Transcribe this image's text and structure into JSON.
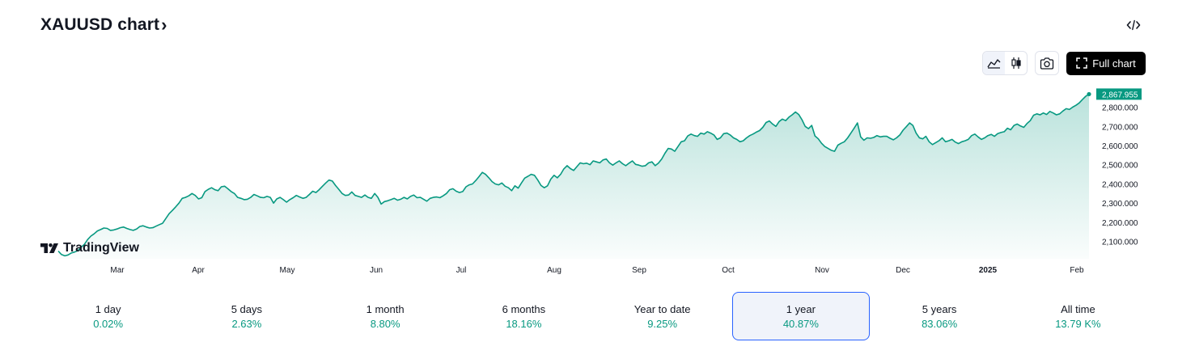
{
  "header": {
    "title": "XAUUSD chart"
  },
  "toolbar": {
    "full_chart_label": "Full chart"
  },
  "brand": {
    "name": "TradingView"
  },
  "colors": {
    "line": "#089981",
    "accent": "#2962ff",
    "price_badge": "#089981"
  },
  "icons": {
    "title_chevron": "chevron-right-icon",
    "embed": "code-icon",
    "area": "area-chart-icon",
    "candles": "candles-icon",
    "snapshot": "camera-icon",
    "fullscreen": "fullscreen-icon",
    "logo": "tradingview-logo-icon"
  },
  "chart_data": {
    "type": "area",
    "title": "",
    "xlabel": "",
    "ylabel": "",
    "x_tick_labels": [
      "Mar",
      "Apr",
      "May",
      "Jun",
      "Jul",
      "Aug",
      "Sep",
      "Oct",
      "Nov",
      "Dec",
      "2025",
      "Feb"
    ],
    "y_tick_labels": [
      "2,800.000",
      "2,700.000",
      "2,600.000",
      "2,500.000",
      "2,400.000",
      "2,300.000",
      "2,200.000",
      "2,100.000"
    ],
    "ylim": [
      2010,
      2895
    ],
    "last_price_label": "2,867.955",
    "last_price": 2867.955,
    "grid": false,
    "series": [
      {
        "values": [
          2050,
          2032,
          2025,
          2030,
          2040,
          2045,
          2052,
          2070,
          2085,
          2110,
          2128,
          2140,
          2155,
          2162,
          2170,
          2168,
          2158,
          2160,
          2165,
          2172,
          2175,
          2168,
          2162,
          2158,
          2165,
          2178,
          2182,
          2175,
          2170,
          2172,
          2180,
          2188,
          2195,
          2220,
          2245,
          2262,
          2280,
          2300,
          2325,
          2330,
          2338,
          2350,
          2340,
          2322,
          2328,
          2360,
          2372,
          2380,
          2370,
          2365,
          2385,
          2388,
          2375,
          2360,
          2350,
          2330,
          2325,
          2318,
          2320,
          2330,
          2345,
          2338,
          2330,
          2328,
          2335,
          2330,
          2300,
          2322,
          2330,
          2318,
          2305,
          2318,
          2328,
          2340,
          2332,
          2325,
          2330,
          2345,
          2362,
          2355,
          2370,
          2388,
          2405,
          2420,
          2415,
          2392,
          2372,
          2350,
          2340,
          2342,
          2358,
          2340,
          2335,
          2330,
          2342,
          2330,
          2325,
          2350,
          2330,
          2295,
          2308,
          2312,
          2318,
          2325,
          2315,
          2320,
          2330,
          2322,
          2335,
          2342,
          2328,
          2330,
          2320,
          2310,
          2325,
          2330,
          2332,
          2328,
          2338,
          2350,
          2370,
          2375,
          2362,
          2355,
          2360,
          2385,
          2395,
          2400,
          2418,
          2438,
          2460,
          2450,
          2432,
          2412,
          2400,
          2395,
          2405,
          2388,
          2380,
          2365,
          2390,
          2378,
          2405,
          2430,
          2440,
          2450,
          2445,
          2420,
          2392,
          2380,
          2390,
          2425,
          2445,
          2432,
          2450,
          2478,
          2495,
          2480,
          2470,
          2490,
          2510,
          2505,
          2508,
          2500,
          2520,
          2515,
          2510,
          2525,
          2530,
          2510,
          2498,
          2510,
          2520,
          2505,
          2495,
          2508,
          2520,
          2502,
          2498,
          2492,
          2495,
          2510,
          2515,
          2495,
          2508,
          2530,
          2560,
          2585,
          2582,
          2570,
          2595,
          2620,
          2625,
          2650,
          2660,
          2652,
          2648,
          2665,
          2660,
          2672,
          2665,
          2655,
          2632,
          2640,
          2662,
          2665,
          2655,
          2640,
          2632,
          2620,
          2625,
          2640,
          2652,
          2660,
          2670,
          2678,
          2695,
          2720,
          2728,
          2712,
          2700,
          2725,
          2738,
          2730,
          2748,
          2760,
          2775,
          2762,
          2735,
          2700,
          2688,
          2705,
          2650,
          2635,
          2612,
          2595,
          2585,
          2575,
          2570,
          2602,
          2612,
          2620,
          2640,
          2665,
          2690,
          2718,
          2645,
          2628,
          2640,
          2638,
          2642,
          2652,
          2645,
          2648,
          2648,
          2638,
          2630,
          2640,
          2655,
          2680,
          2698,
          2718,
          2705,
          2665,
          2640,
          2635,
          2648,
          2620,
          2605,
          2615,
          2625,
          2640,
          2620,
          2625,
          2632,
          2618,
          2610,
          2620,
          2625,
          2632,
          2652,
          2660,
          2645,
          2632,
          2640,
          2652,
          2658,
          2648,
          2662,
          2668,
          2672,
          2690,
          2682,
          2705,
          2712,
          2702,
          2695,
          2715,
          2730,
          2758,
          2765,
          2760,
          2770,
          2762,
          2778,
          2770,
          2760,
          2765,
          2780,
          2792,
          2788,
          2800,
          2810,
          2822,
          2840,
          2857,
          2867.955
        ]
      }
    ]
  },
  "periods": [
    {
      "label": "1 day",
      "value": "0.02%"
    },
    {
      "label": "5 days",
      "value": "2.63%"
    },
    {
      "label": "1 month",
      "value": "8.80%"
    },
    {
      "label": "6 months",
      "value": "18.16%"
    },
    {
      "label": "Year to date",
      "value": "9.25%"
    },
    {
      "label": "1 year",
      "value": "40.87%"
    },
    {
      "label": "5 years",
      "value": "83.06%"
    },
    {
      "label": "All time",
      "value": "13.79 K%"
    }
  ]
}
